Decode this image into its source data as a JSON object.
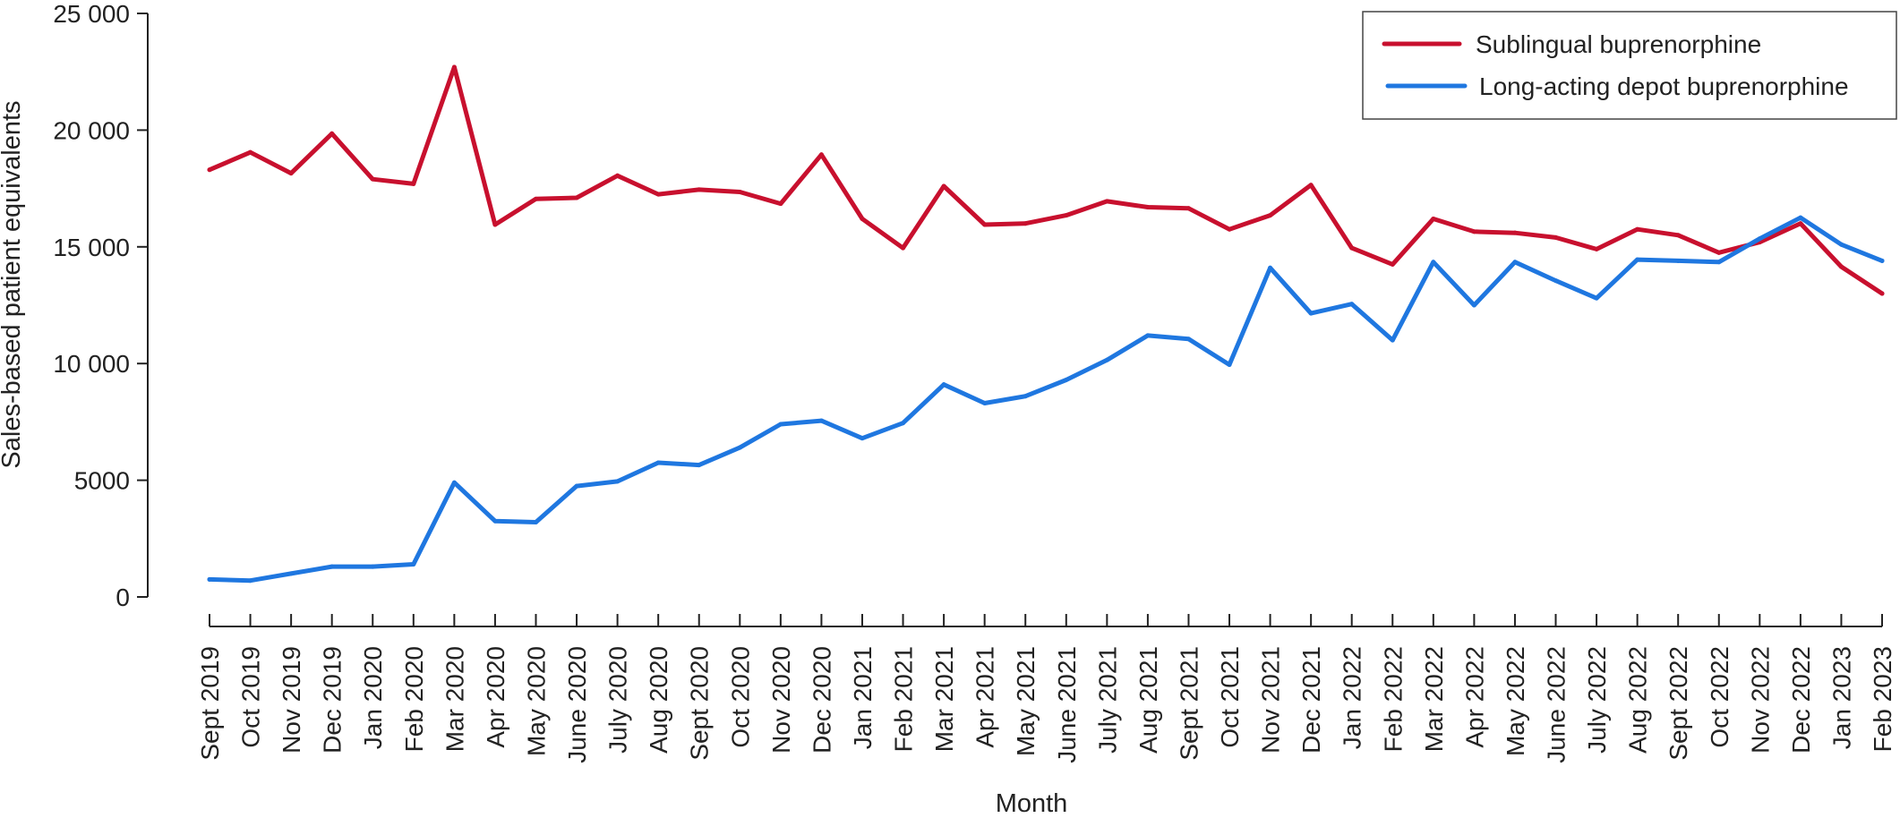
{
  "chart_data": {
    "type": "line",
    "title": "",
    "xlabel": "Month",
    "ylabel": "Sales-based patient equivalents",
    "ylim": [
      0,
      25000
    ],
    "yticks": [
      0,
      5000,
      10000,
      15000,
      20000,
      25000
    ],
    "ytick_labels": [
      "0",
      "5000",
      "10 000",
      "15 000",
      "20 000",
      "25 000"
    ],
    "grid": false,
    "legend_position": "top-right",
    "categories": [
      "Sept 2019",
      "Oct 2019",
      "Nov 2019",
      "Dec 2019",
      "Jan 2020",
      "Feb 2020",
      "Mar 2020",
      "Apr 2020",
      "May 2020",
      "June 2020",
      "July 2020",
      "Aug 2020",
      "Sept 2020",
      "Oct 2020",
      "Nov 2020",
      "Dec 2020",
      "Jan 2021",
      "Feb 2021",
      "Mar 2021",
      "Apr 2021",
      "May 2021",
      "June 2021",
      "July 2021",
      "Aug 2021",
      "Sept 2021",
      "Oct 2021",
      "Nov 2021",
      "Dec 2021",
      "Jan 2022",
      "Feb 2022",
      "Mar 2022",
      "Apr 2022",
      "May 2022",
      "June 2022",
      "July 2022",
      "Aug 2022",
      "Sept 2022",
      "Oct 2022",
      "Nov 2022",
      "Dec 2022",
      "Jan 2023",
      "Feb 2023"
    ],
    "series": [
      {
        "name": "Sublingual buprenorphine",
        "color": "#c8102e",
        "values": [
          18300,
          19050,
          18150,
          19850,
          17900,
          17700,
          22700,
          15950,
          17050,
          17100,
          18050,
          17250,
          17450,
          17350,
          16850,
          18950,
          16200,
          14950,
          17600,
          15950,
          16000,
          16350,
          16950,
          16700,
          16650,
          15750,
          16350,
          17650,
          14950,
          14250,
          16200,
          15650,
          15600,
          15400,
          14900,
          15750,
          15500,
          14750,
          15200,
          16000,
          14150,
          13000
        ]
      },
      {
        "name": "Long-acting depot buprenorphine",
        "color": "#1f77e0",
        "values": [
          750,
          700,
          1000,
          1300,
          1300,
          1400,
          4900,
          3250,
          3200,
          4750,
          4950,
          5750,
          5650,
          6400,
          7400,
          7550,
          6800,
          7450,
          9100,
          8300,
          8600,
          9300,
          10150,
          11200,
          11050,
          9950,
          14100,
          12150,
          12550,
          11000,
          14350,
          12500,
          14350,
          13550,
          12800,
          14450,
          14400,
          14350,
          15350,
          16250,
          15100,
          14400
        ]
      }
    ]
  }
}
